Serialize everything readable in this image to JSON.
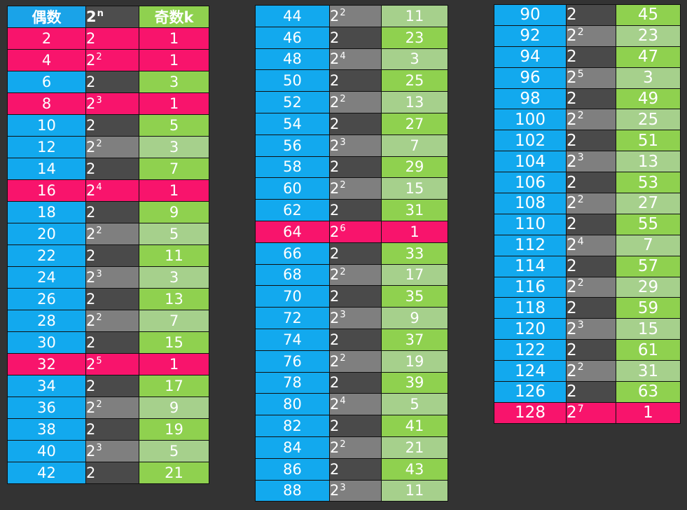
{
  "header": {
    "even": "偶数",
    "pow_base": "2",
    "pow_exp": "n",
    "odd": "奇数k"
  },
  "colors": {
    "blue": "#12a9ee",
    "pink": "#f8146c",
    "dark_gray": "#4a4a4a",
    "mid_gray": "#7f7f7f",
    "green": "#8fd14f",
    "light_green": "#a6d08c"
  },
  "tables": [
    {
      "rows": [
        {
          "even": "2",
          "base": "2",
          "exp": "",
          "odd": "1",
          "hl": true
        },
        {
          "even": "4",
          "base": "2",
          "exp": "2",
          "odd": "1",
          "hl": true
        },
        {
          "even": "6",
          "base": "2",
          "exp": "",
          "odd": "3",
          "hl": false
        },
        {
          "even": "8",
          "base": "2",
          "exp": "3",
          "odd": "1",
          "hl": true
        },
        {
          "even": "10",
          "base": "2",
          "exp": "",
          "odd": "5",
          "hl": false
        },
        {
          "even": "12",
          "base": "2",
          "exp": "2",
          "odd": "3",
          "hl": false
        },
        {
          "even": "14",
          "base": "2",
          "exp": "",
          "odd": "7",
          "hl": false
        },
        {
          "even": "16",
          "base": "2",
          "exp": "4",
          "odd": "1",
          "hl": true
        },
        {
          "even": "18",
          "base": "2",
          "exp": "",
          "odd": "9",
          "hl": false
        },
        {
          "even": "20",
          "base": "2",
          "exp": "2",
          "odd": "5",
          "hl": false
        },
        {
          "even": "22",
          "base": "2",
          "exp": "",
          "odd": "11",
          "hl": false
        },
        {
          "even": "24",
          "base": "2",
          "exp": "3",
          "odd": "3",
          "hl": false
        },
        {
          "even": "26",
          "base": "2",
          "exp": "",
          "odd": "13",
          "hl": false
        },
        {
          "even": "28",
          "base": "2",
          "exp": "2",
          "odd": "7",
          "hl": false
        },
        {
          "even": "30",
          "base": "2",
          "exp": "",
          "odd": "15",
          "hl": false
        },
        {
          "even": "32",
          "base": "2",
          "exp": "5",
          "odd": "1",
          "hl": true
        },
        {
          "even": "34",
          "base": "2",
          "exp": "",
          "odd": "17",
          "hl": false
        },
        {
          "even": "36",
          "base": "2",
          "exp": "2",
          "odd": "9",
          "hl": false
        },
        {
          "even": "38",
          "base": "2",
          "exp": "",
          "odd": "19",
          "hl": false
        },
        {
          "even": "40",
          "base": "2",
          "exp": "3",
          "odd": "5",
          "hl": false
        },
        {
          "even": "42",
          "base": "2",
          "exp": "",
          "odd": "21",
          "hl": false
        }
      ]
    },
    {
      "rows": [
        {
          "even": "44",
          "base": "2",
          "exp": "2",
          "odd": "11",
          "hl": false
        },
        {
          "even": "46",
          "base": "2",
          "exp": "",
          "odd": "23",
          "hl": false
        },
        {
          "even": "48",
          "base": "2",
          "exp": "4",
          "odd": "3",
          "hl": false
        },
        {
          "even": "50",
          "base": "2",
          "exp": "",
          "odd": "25",
          "hl": false
        },
        {
          "even": "52",
          "base": "2",
          "exp": "2",
          "odd": "13",
          "hl": false
        },
        {
          "even": "54",
          "base": "2",
          "exp": "",
          "odd": "27",
          "hl": false
        },
        {
          "even": "56",
          "base": "2",
          "exp": "3",
          "odd": "7",
          "hl": false
        },
        {
          "even": "58",
          "base": "2",
          "exp": "",
          "odd": "29",
          "hl": false
        },
        {
          "even": "60",
          "base": "2",
          "exp": "2",
          "odd": "15",
          "hl": false
        },
        {
          "even": "62",
          "base": "2",
          "exp": "",
          "odd": "31",
          "hl": false
        },
        {
          "even": "64",
          "base": "2",
          "exp": "6",
          "odd": "1",
          "hl": true
        },
        {
          "even": "66",
          "base": "2",
          "exp": "",
          "odd": "33",
          "hl": false
        },
        {
          "even": "68",
          "base": "2",
          "exp": "2",
          "odd": "17",
          "hl": false
        },
        {
          "even": "70",
          "base": "2",
          "exp": "",
          "odd": "35",
          "hl": false
        },
        {
          "even": "72",
          "base": "2",
          "exp": "3",
          "odd": "9",
          "hl": false
        },
        {
          "even": "74",
          "base": "2",
          "exp": "",
          "odd": "37",
          "hl": false
        },
        {
          "even": "76",
          "base": "2",
          "exp": "2",
          "odd": "19",
          "hl": false
        },
        {
          "even": "78",
          "base": "2",
          "exp": "",
          "odd": "39",
          "hl": false
        },
        {
          "even": "80",
          "base": "2",
          "exp": "4",
          "odd": "5",
          "hl": false
        },
        {
          "even": "82",
          "base": "2",
          "exp": "",
          "odd": "41",
          "hl": false
        },
        {
          "even": "84",
          "base": "2",
          "exp": "2",
          "odd": "21",
          "hl": false
        },
        {
          "even": "86",
          "base": "2",
          "exp": "",
          "odd": "43",
          "hl": false
        },
        {
          "even": "88",
          "base": "2",
          "exp": "3",
          "odd": "11",
          "hl": false
        }
      ]
    },
    {
      "rows": [
        {
          "even": "90",
          "base": "2",
          "exp": "",
          "odd": "45",
          "hl": false
        },
        {
          "even": "92",
          "base": "2",
          "exp": "2",
          "odd": "23",
          "hl": false
        },
        {
          "even": "94",
          "base": "2",
          "exp": "",
          "odd": "47",
          "hl": false
        },
        {
          "even": "96",
          "base": "2",
          "exp": "5",
          "odd": "3",
          "hl": false
        },
        {
          "even": "98",
          "base": "2",
          "exp": "",
          "odd": "49",
          "hl": false
        },
        {
          "even": "100",
          "base": "2",
          "exp": "2",
          "odd": "25",
          "hl": false
        },
        {
          "even": "102",
          "base": "2",
          "exp": "",
          "odd": "51",
          "hl": false
        },
        {
          "even": "104",
          "base": "2",
          "exp": "3",
          "odd": "13",
          "hl": false
        },
        {
          "even": "106",
          "base": "2",
          "exp": "",
          "odd": "53",
          "hl": false
        },
        {
          "even": "108",
          "base": "2",
          "exp": "2",
          "odd": "27",
          "hl": false
        },
        {
          "even": "110",
          "base": "2",
          "exp": "",
          "odd": "55",
          "hl": false
        },
        {
          "even": "112",
          "base": "2",
          "exp": "4",
          "odd": "7",
          "hl": false
        },
        {
          "even": "114",
          "base": "2",
          "exp": "",
          "odd": "57",
          "hl": false
        },
        {
          "even": "116",
          "base": "2",
          "exp": "2",
          "odd": "29",
          "hl": false
        },
        {
          "even": "118",
          "base": "2",
          "exp": "",
          "odd": "59",
          "hl": false
        },
        {
          "even": "120",
          "base": "2",
          "exp": "3",
          "odd": "15",
          "hl": false
        },
        {
          "even": "122",
          "base": "2",
          "exp": "",
          "odd": "61",
          "hl": false
        },
        {
          "even": "124",
          "base": "2",
          "exp": "2",
          "odd": "31",
          "hl": false
        },
        {
          "even": "126",
          "base": "2",
          "exp": "",
          "odd": "63",
          "hl": false
        },
        {
          "even": "128",
          "base": "2",
          "exp": "7",
          "odd": "1",
          "hl": true
        }
      ]
    }
  ]
}
